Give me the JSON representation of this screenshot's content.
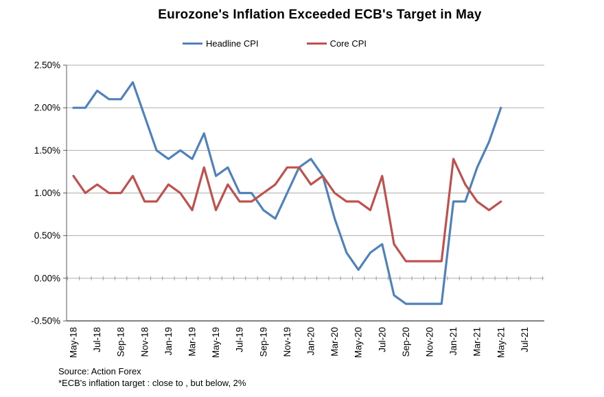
{
  "page": {
    "title": "Eurozone's Inflation Exceeded ECB's Target in May"
  },
  "footer": {
    "source": "Source: Action Forex",
    "note": "*ECB's  inflation target : close to , but below, 2%"
  },
  "chart_data": {
    "type": "line",
    "title": "Eurozone's Inflation Exceeded ECB's Target in May",
    "xlabel": "",
    "ylabel": "",
    "ylim": [
      -0.5,
      2.5
    ],
    "grid": "horizontal",
    "legend_position": "top",
    "y_ticks": [
      "2.50%",
      "2.00%",
      "1.50%",
      "1.00%",
      "0.50%",
      "0.00%",
      "-0.50%"
    ],
    "y_tick_values": [
      2.5,
      2.0,
      1.5,
      1.0,
      0.5,
      0.0,
      -0.5
    ],
    "x_axis_ticklabels": [
      "May-18",
      "Jul-18",
      "Sep-18",
      "Nov-18",
      "Jan-19",
      "Mar-19",
      "May-19",
      "Jul-19",
      "Sep-19",
      "Nov-19",
      "Jan-20",
      "Mar-20",
      "May-20",
      "Jul-20",
      "Sep-20",
      "Nov-20",
      "Jan-21",
      "Mar-21",
      "May-21",
      "Jul-21"
    ],
    "categories": [
      "May-18",
      "Jun-18",
      "Jul-18",
      "Aug-18",
      "Sep-18",
      "Oct-18",
      "Nov-18",
      "Dec-18",
      "Jan-19",
      "Feb-19",
      "Mar-19",
      "Apr-19",
      "May-19",
      "Jun-19",
      "Jul-19",
      "Aug-19",
      "Sep-19",
      "Oct-19",
      "Nov-19",
      "Dec-19",
      "Jan-20",
      "Feb-20",
      "Mar-20",
      "Apr-20",
      "May-20",
      "Jun-20",
      "Jul-20",
      "Aug-20",
      "Sep-20",
      "Oct-20",
      "Nov-20",
      "Dec-20",
      "Jan-21",
      "Feb-21",
      "Mar-21",
      "Apr-21",
      "May-21"
    ],
    "series": [
      {
        "name": "Headline CPI",
        "color": "#4F81BD",
        "values": [
          2.0,
          2.0,
          2.2,
          2.1,
          2.1,
          2.3,
          1.9,
          1.5,
          1.4,
          1.5,
          1.4,
          1.7,
          1.2,
          1.3,
          1.0,
          1.0,
          0.8,
          0.7,
          1.0,
          1.3,
          1.4,
          1.2,
          0.7,
          0.3,
          0.1,
          0.3,
          0.4,
          -0.2,
          -0.3,
          -0.3,
          -0.3,
          -0.3,
          0.9,
          0.9,
          1.3,
          1.6,
          2.0
        ]
      },
      {
        "name": "Core CPI",
        "color": "#C0504D",
        "values": [
          1.2,
          1.0,
          1.1,
          1.0,
          1.0,
          1.2,
          0.9,
          0.9,
          1.1,
          1.0,
          0.8,
          1.3,
          0.8,
          1.1,
          0.9,
          0.9,
          1.0,
          1.1,
          1.3,
          1.3,
          1.1,
          1.2,
          1.0,
          0.9,
          0.9,
          0.8,
          1.2,
          0.4,
          0.2,
          0.2,
          0.2,
          0.2,
          1.4,
          1.1,
          0.9,
          0.8,
          0.9
        ]
      }
    ]
  }
}
